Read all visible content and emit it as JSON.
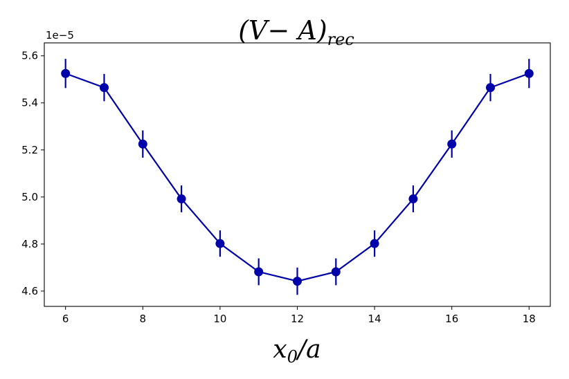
{
  "chart_data": {
    "type": "line",
    "title": {
      "main": "(V− A)",
      "sub": "rec"
    },
    "xlabel": {
      "main": "x",
      "sub": "0",
      "rest": "/a"
    },
    "ylabel": "",
    "offset_label": "1e−5",
    "xlim": [
      5.45,
      18.55
    ],
    "ylim": [
      4.535,
      5.655
    ],
    "xticks": [
      6,
      8,
      10,
      12,
      14,
      16,
      18
    ],
    "yticks": [
      4.6,
      4.8,
      5.0,
      5.2,
      5.4,
      5.6
    ],
    "ytick_labels": [
      "4.6",
      "4.8",
      "5.0",
      "5.2",
      "5.4",
      "5.6"
    ],
    "grid": false,
    "color": "#0000AA",
    "series": [
      {
        "x": [
          6,
          7,
          8,
          9,
          10,
          11,
          12,
          13,
          14,
          15,
          16,
          17,
          18
        ],
        "y": [
          5.525,
          5.465,
          5.225,
          4.992,
          4.802,
          4.682,
          4.642,
          4.682,
          4.802,
          4.992,
          5.225,
          5.465,
          5.525
        ],
        "yerr": [
          0.062,
          0.058,
          0.058,
          0.057,
          0.056,
          0.057,
          0.058,
          0.057,
          0.056,
          0.057,
          0.058,
          0.058,
          0.062
        ]
      }
    ]
  }
}
